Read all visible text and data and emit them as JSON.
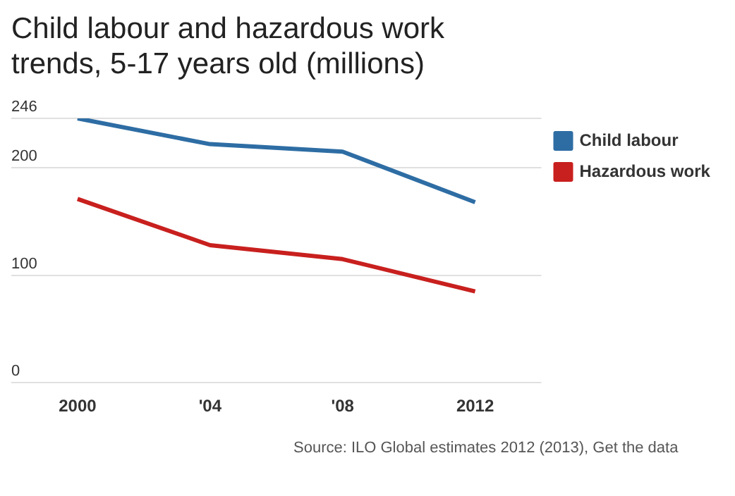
{
  "chart_data": {
    "type": "line",
    "title": "Child labour and hazardous work trends, 5-17 years old (millions)",
    "categories": [
      "2000",
      "'04",
      "'08",
      "2012"
    ],
    "series": [
      {
        "name": "Child labour",
        "color": "#2e6da4",
        "values": [
          246,
          222,
          215,
          168
        ]
      },
      {
        "name": "Hazardous work",
        "color": "#c8201e",
        "values": [
          171,
          128,
          115,
          85
        ]
      }
    ],
    "ylim": [
      0,
      246
    ],
    "yticks": [
      0,
      100,
      200,
      246
    ],
    "grid": "y",
    "legend": "top right",
    "marker": "none",
    "line_style": "solid",
    "annotations": [
      "Source: ILO Global estimates 2012 (2013), Get the data"
    ]
  }
}
